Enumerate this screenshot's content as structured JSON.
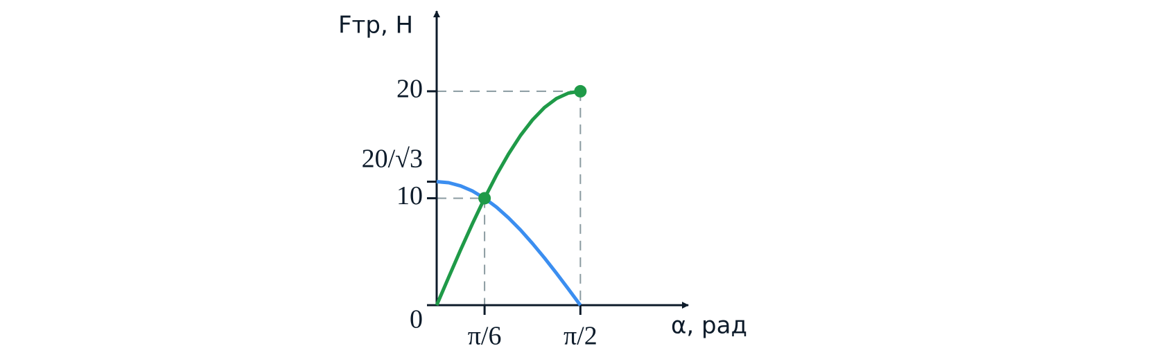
{
  "chart_data": {
    "type": "line",
    "x_label": "α, рад",
    "y_label": "Fтр, Н",
    "x": [
      0,
      0.1309,
      0.2618,
      0.3927,
      0.5236,
      0.6545,
      0.7854,
      0.9163,
      1.0472,
      1.1781,
      1.309,
      1.4399,
      1.5708
    ],
    "series": [
      {
        "color": "#1f9a48",
        "values": [
          0,
          2.61,
          5.18,
          7.65,
          10,
          12.18,
          14.14,
          15.87,
          17.32,
          18.48,
          19.32,
          19.83,
          20
        ]
      },
      {
        "color": "#3b8ef0",
        "values": [
          11.55,
          11.45,
          11.15,
          10.67,
          10,
          9.16,
          8.16,
          7.03,
          5.77,
          4.42,
          2.99,
          1.51,
          0
        ]
      }
    ],
    "markers": [
      {
        "x": 0.5236,
        "y": 10,
        "color": "#1f9a48"
      },
      {
        "x": 1.5708,
        "y": 20,
        "color": "#1f9a48"
      }
    ],
    "xlim": [
      0,
      2.75
    ],
    "ylim": [
      0,
      27.5
    ],
    "xticks": [
      {
        "value": 0.5236,
        "label": "π/6"
      },
      {
        "value": 1.5708,
        "label": "π/2"
      }
    ],
    "yticks": [
      0,
      10,
      {
        "value": 11.547,
        "label": "20/√3"
      },
      20
    ]
  }
}
